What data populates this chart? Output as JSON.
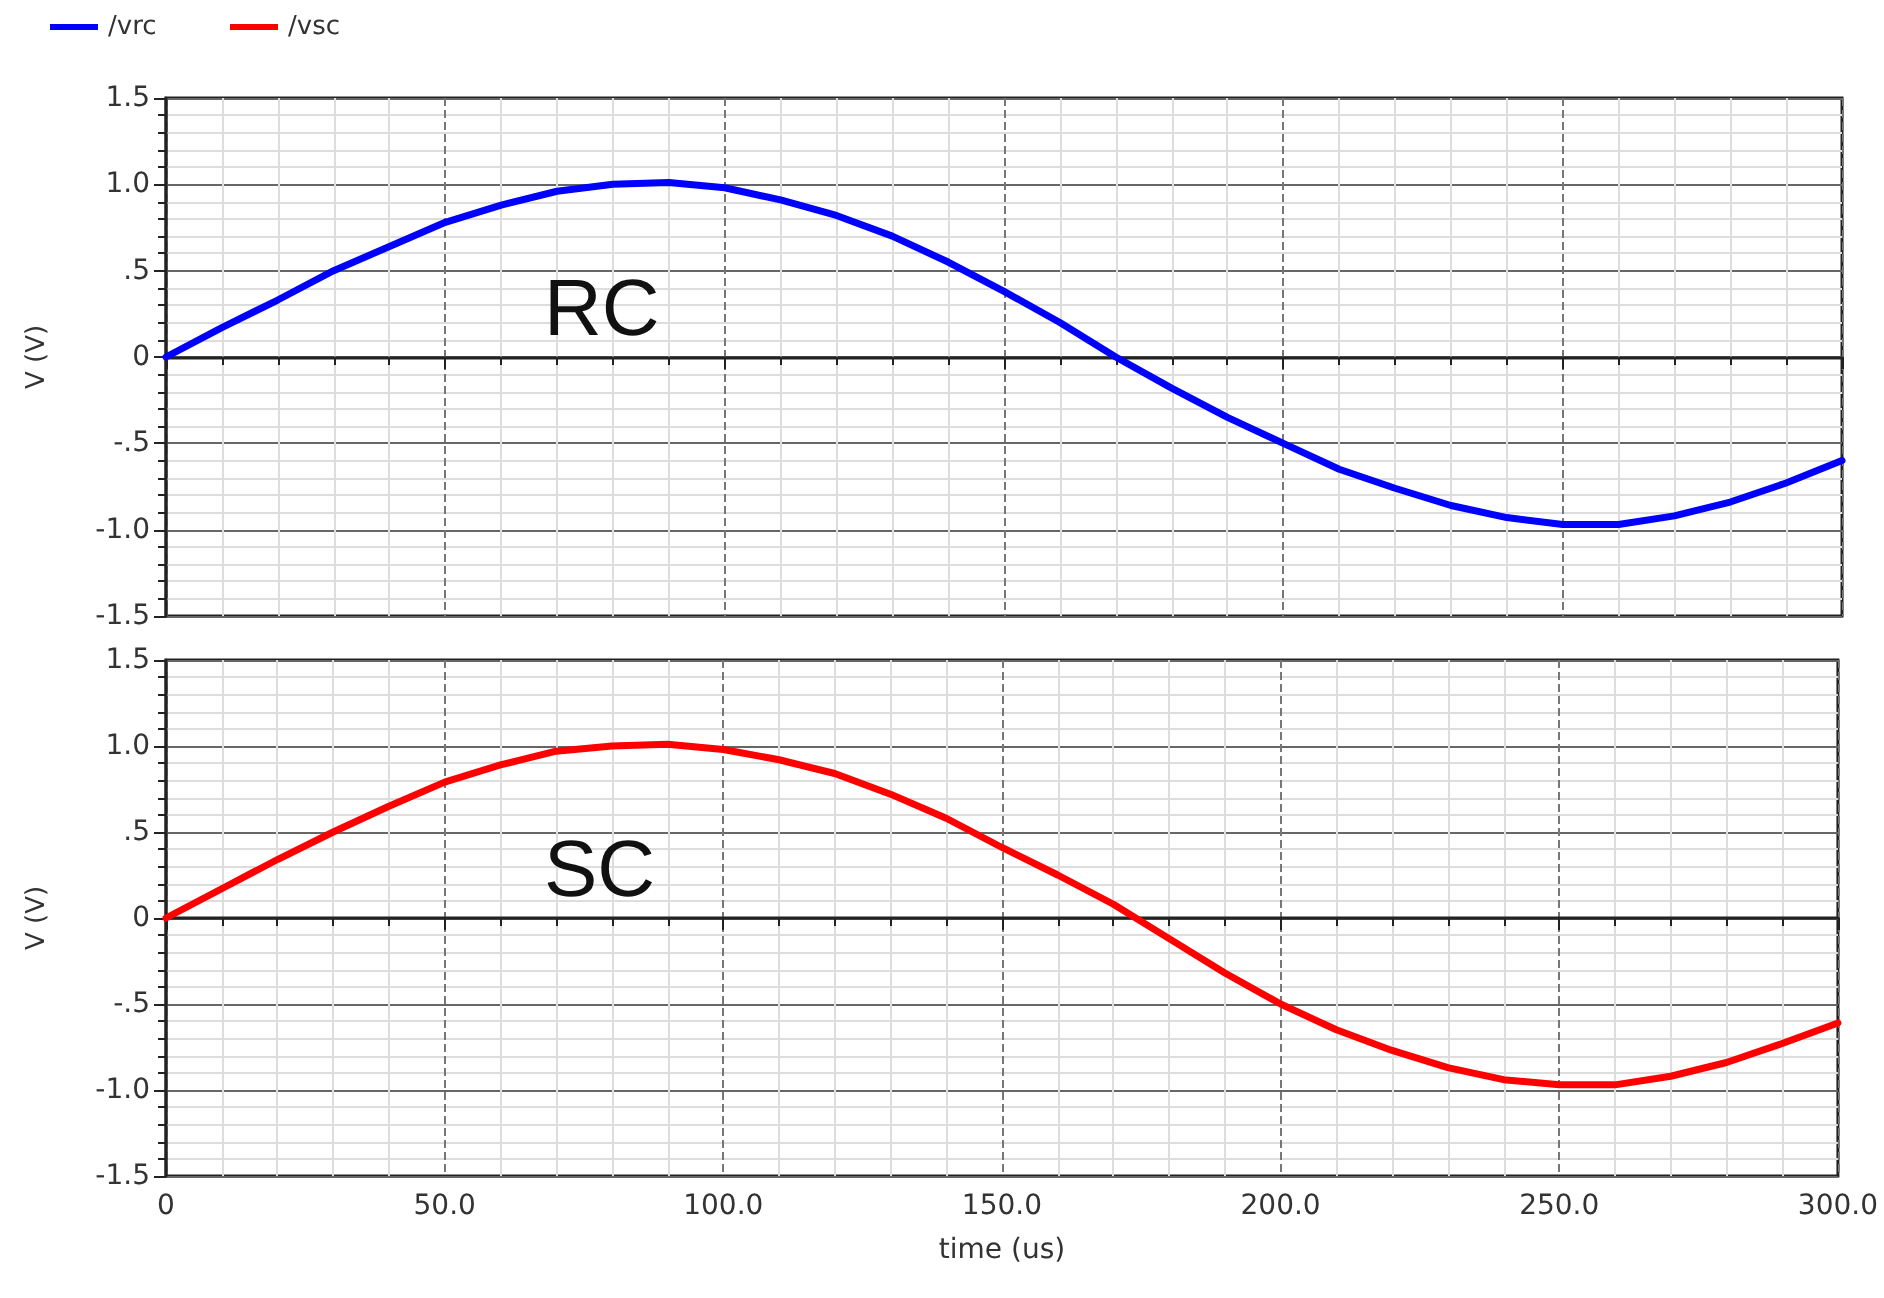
{
  "chart_data": [
    {
      "type": "line",
      "ylabel": "V (V)",
      "annotations": [
        "RC"
      ],
      "legend": "top left",
      "grid": true,
      "marker": "none",
      "line_style": "solid",
      "tick_labels": "y",
      "x": [
        0,
        10,
        20,
        30,
        40,
        50,
        60,
        70,
        80,
        90,
        100,
        110,
        120,
        130,
        140,
        150,
        160,
        170,
        180,
        190,
        200,
        210,
        220,
        230,
        240,
        250,
        260,
        270,
        280,
        290,
        300
      ],
      "series": [
        {
          "name": "/vrc",
          "color": "#0000ff",
          "values": [
            0,
            0.17,
            0.33,
            0.5,
            0.64,
            0.78,
            0.88,
            0.96,
            1.0,
            1.01,
            0.98,
            0.91,
            0.82,
            0.7,
            0.55,
            0.38,
            0.2,
            0.0,
            -0.18,
            -0.35,
            -0.5,
            -0.65,
            -0.76,
            -0.86,
            -0.93,
            -0.97,
            -0.97,
            -0.92,
            -0.84,
            -0.73,
            -0.6
          ]
        }
      ],
      "xlim": [
        0,
        300
      ],
      "xticks": [
        {
          "value": 0,
          "label": null
        },
        {
          "value": 50,
          "label": null
        },
        {
          "value": 100,
          "label": null
        },
        {
          "value": 150,
          "label": null
        },
        {
          "value": 200,
          "label": null
        },
        {
          "value": 250,
          "label": null
        },
        {
          "value": 300,
          "label": null
        }
      ],
      "ylim": [
        -1.5,
        1.5
      ],
      "yticks": [
        {
          "value": -1.5,
          "label": "-1.5"
        },
        {
          "value": -1,
          "label": "-1.0"
        },
        {
          "value": -0.5,
          "label": "-.5"
        },
        {
          "value": 0,
          "label": "0"
        },
        {
          "value": 0.5,
          "label": ".5"
        },
        {
          "value": 1,
          "label": "1.0"
        },
        {
          "value": 1.5,
          "label": "1.5"
        }
      ]
    },
    {
      "type": "line",
      "xlabel": "time (us)",
      "ylabel": "V (V)",
      "annotations": [
        "SC"
      ],
      "legend": "top left",
      "grid": true,
      "marker": "none",
      "line_style": "solid",
      "x": [
        0,
        10,
        20,
        30,
        40,
        50,
        60,
        70,
        80,
        90,
        100,
        110,
        120,
        130,
        140,
        150,
        160,
        170,
        180,
        190,
        200,
        210,
        220,
        230,
        240,
        250,
        260,
        270,
        280,
        290,
        300
      ],
      "series": [
        {
          "name": "/vsc",
          "color": "#ff0000",
          "values": [
            0,
            0.17,
            0.34,
            0.5,
            0.65,
            0.79,
            0.89,
            0.97,
            1.0,
            1.01,
            0.98,
            0.92,
            0.84,
            0.72,
            0.58,
            0.41,
            0.25,
            0.08,
            -0.12,
            -0.32,
            -0.5,
            -0.65,
            -0.77,
            -0.87,
            -0.94,
            -0.97,
            -0.97,
            -0.92,
            -0.84,
            -0.73,
            -0.61
          ]
        }
      ],
      "xlim": [
        0,
        300
      ],
      "xticks": [
        {
          "value": 0,
          "label": "0"
        },
        {
          "value": 50,
          "label": "50.0"
        },
        {
          "value": 100,
          "label": "100.0"
        },
        {
          "value": 150,
          "label": "150.0"
        },
        {
          "value": 200,
          "label": "200.0"
        },
        {
          "value": 250,
          "label": "250.0"
        },
        {
          "value": 300,
          "label": "300.0"
        }
      ],
      "ylim": [
        -1.5,
        1.5
      ],
      "yticks": [
        {
          "value": -1.5,
          "label": "-1.5"
        },
        {
          "value": -1,
          "label": "-1.0"
        },
        {
          "value": -0.5,
          "label": "-.5"
        },
        {
          "value": 0,
          "label": "0"
        },
        {
          "value": 0.5,
          "label": ".5"
        },
        {
          "value": 1,
          "label": "1.0"
        },
        {
          "value": 1.5,
          "label": "1.5"
        }
      ]
    }
  ]
}
